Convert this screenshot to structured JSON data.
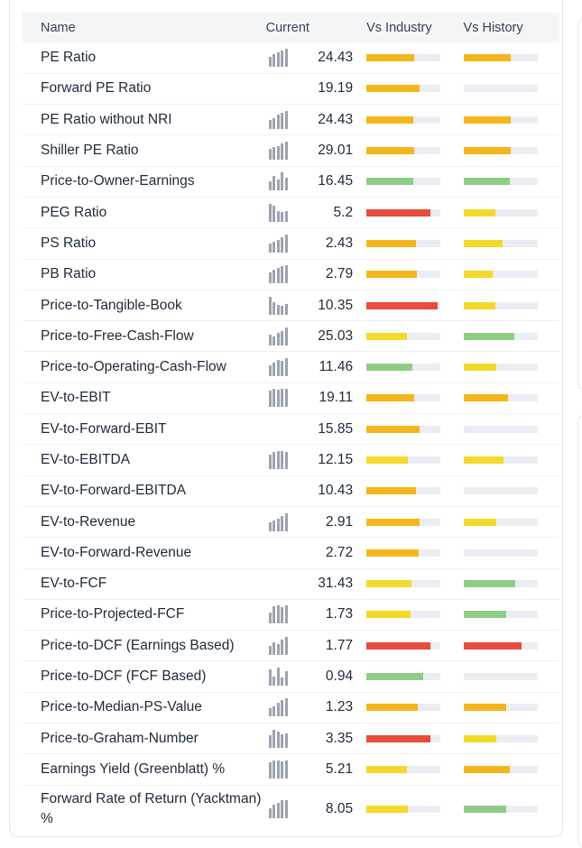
{
  "header": {
    "name": "Name",
    "current": "Current",
    "vs_industry": "Vs Industry",
    "vs_history": "Vs History"
  },
  "colors": {
    "orange": "#f5b61d",
    "yellow": "#f2d92a",
    "green": "#8fcd86",
    "red": "#e84c3d",
    "track": "#eaeef3",
    "spark": "#9ca3af"
  },
  "rows": [
    {
      "name": "PE Ratio",
      "value": "24.43",
      "spark": "bar-chart-icon",
      "spark_heights": [
        0.55,
        0.7,
        0.8,
        0.9,
        1
      ],
      "industry": {
        "level": 0.65,
        "color": "orange"
      },
      "history": {
        "level": 0.64,
        "color": "orange"
      }
    },
    {
      "name": "Forward PE Ratio",
      "value": "19.19",
      "industry": {
        "level": 0.72,
        "color": "orange"
      },
      "history": {
        "level": 0,
        "color": "none"
      }
    },
    {
      "name": "PE Ratio without NRI",
      "value": "24.43",
      "spark": "bar-chart-icon",
      "spark_heights": [
        0.5,
        0.6,
        0.8,
        0.9,
        1
      ],
      "industry": {
        "level": 0.63,
        "color": "orange"
      },
      "history": {
        "level": 0.64,
        "color": "orange"
      }
    },
    {
      "name": "Shiller PE Ratio",
      "value": "29.01",
      "spark": "bar-chart-icon",
      "spark_heights": [
        0.6,
        0.7,
        0.75,
        0.9,
        1
      ],
      "industry": {
        "level": 0.64,
        "color": "orange"
      },
      "history": {
        "level": 0.64,
        "color": "orange"
      }
    },
    {
      "name": "Price-to-Owner-Earnings",
      "value": "16.45",
      "spark": "bar-chart-icon",
      "spark_heights": [
        0.5,
        0.8,
        0.6,
        1,
        0.7
      ],
      "industry": {
        "level": 0.63,
        "color": "green"
      },
      "history": {
        "level": 0.63,
        "color": "green"
      }
    },
    {
      "name": "PEG Ratio",
      "value": "5.2",
      "spark": "bar-chart-icon",
      "spark_heights": [
        1,
        0.9,
        0.6,
        0.55,
        0.6
      ],
      "industry": {
        "level": 0.86,
        "color": "red"
      },
      "history": {
        "level": 0.43,
        "color": "yellow"
      }
    },
    {
      "name": "PS Ratio",
      "value": "2.43",
      "spark": "bar-chart-icon",
      "spark_heights": [
        0.5,
        0.6,
        0.7,
        0.85,
        1
      ],
      "industry": {
        "level": 0.67,
        "color": "orange"
      },
      "history": {
        "level": 0.53,
        "color": "yellow"
      }
    },
    {
      "name": "PB Ratio",
      "value": "2.79",
      "spark": "bar-chart-icon",
      "spark_heights": [
        0.6,
        0.75,
        0.85,
        0.95,
        1
      ],
      "industry": {
        "level": 0.68,
        "color": "orange"
      },
      "history": {
        "level": 0.39,
        "color": "yellow"
      }
    },
    {
      "name": "Price-to-Tangible-Book",
      "value": "10.35",
      "spark": "bar-chart-icon",
      "spark_heights": [
        1,
        0.7,
        0.55,
        0.5,
        0.6
      ],
      "industry": {
        "level": 0.96,
        "color": "red"
      },
      "history": {
        "level": 0.43,
        "color": "yellow"
      }
    },
    {
      "name": "Price-to-Free-Cash-Flow",
      "value": "25.03",
      "spark": "bar-chart-icon",
      "spark_heights": [
        0.6,
        0.5,
        0.7,
        0.8,
        1
      ],
      "industry": {
        "level": 0.55,
        "color": "yellow"
      },
      "history": {
        "level": 0.69,
        "color": "green"
      }
    },
    {
      "name": "Price-to-Operating-Cash-Flow",
      "value": "11.46",
      "spark": "bar-chart-icon",
      "spark_heights": [
        0.6,
        0.75,
        0.9,
        0.85,
        1
      ],
      "industry": {
        "level": 0.62,
        "color": "green"
      },
      "history": {
        "level": 0.44,
        "color": "yellow"
      }
    },
    {
      "name": "EV-to-EBIT",
      "value": "19.11",
      "spark": "bar-chart-icon",
      "spark_heights": [
        0.9,
        1,
        0.95,
        1,
        1
      ],
      "industry": {
        "level": 0.64,
        "color": "orange"
      },
      "history": {
        "level": 0.6,
        "color": "orange"
      }
    },
    {
      "name": "EV-to-Forward-EBIT",
      "value": "15.85",
      "industry": {
        "level": 0.72,
        "color": "orange"
      },
      "history": {
        "level": 0,
        "color": "none"
      }
    },
    {
      "name": "EV-to-EBITDA",
      "value": "12.15",
      "spark": "bar-chart-icon",
      "spark_heights": [
        0.8,
        0.95,
        1,
        1,
        0.95
      ],
      "industry": {
        "level": 0.56,
        "color": "yellow"
      },
      "history": {
        "level": 0.54,
        "color": "yellow"
      }
    },
    {
      "name": "EV-to-Forward-EBITDA",
      "value": "10.43",
      "industry": {
        "level": 0.67,
        "color": "orange"
      },
      "history": {
        "level": 0,
        "color": "none"
      }
    },
    {
      "name": "EV-to-Revenue",
      "value": "2.91",
      "spark": "bar-chart-icon",
      "spark_heights": [
        0.5,
        0.6,
        0.7,
        0.85,
        1
      ],
      "industry": {
        "level": 0.72,
        "color": "orange"
      },
      "history": {
        "level": 0.45,
        "color": "yellow"
      }
    },
    {
      "name": "EV-to-Forward-Revenue",
      "value": "2.72",
      "industry": {
        "level": 0.71,
        "color": "orange"
      },
      "history": {
        "level": 0,
        "color": "none"
      }
    },
    {
      "name": "EV-to-FCF",
      "value": "31.43",
      "industry": {
        "level": 0.61,
        "color": "yellow"
      },
      "history": {
        "level": 0.7,
        "color": "green"
      }
    },
    {
      "name": "Price-to-Projected-FCF",
      "value": "1.73",
      "spark": "bar-chart-icon",
      "spark_heights": [
        0.6,
        0.95,
        1,
        0.9,
        1
      ],
      "industry": {
        "level": 0.6,
        "color": "yellow"
      },
      "history": {
        "level": 0.58,
        "color": "green"
      }
    },
    {
      "name": "Price-to-DCF (Earnings Based)",
      "value": "1.77",
      "spark": "bar-chart-icon",
      "spark_heights": [
        0.5,
        0.7,
        0.6,
        0.85,
        1
      ],
      "industry": {
        "level": 0.87,
        "color": "red"
      },
      "history": {
        "level": 0.79,
        "color": "red"
      }
    },
    {
      "name": "Price-to-DCF (FCF Based)",
      "value": "0.94",
      "spark": "bar-chart-icon",
      "spark_heights": [
        0.9,
        0.5,
        1,
        0.45,
        0.8
      ],
      "industry": {
        "level": 0.77,
        "color": "green"
      },
      "history": {
        "level": 0,
        "color": "none"
      }
    },
    {
      "name": "Price-to-Median-PS-Value",
      "value": "1.23",
      "spark": "bar-chart-icon",
      "spark_heights": [
        0.45,
        0.55,
        0.75,
        0.9,
        1
      ],
      "industry": {
        "level": 0.7,
        "color": "orange"
      },
      "history": {
        "level": 0.58,
        "color": "orange"
      }
    },
    {
      "name": "Price-to-Graham-Number",
      "value": "3.35",
      "spark": "bar-chart-icon",
      "spark_heights": [
        0.7,
        1,
        0.9,
        0.75,
        0.8
      ],
      "industry": {
        "level": 0.87,
        "color": "red"
      },
      "history": {
        "level": 0.45,
        "color": "yellow"
      }
    },
    {
      "name": "Earnings Yield (Greenblatt) %",
      "value": "5.21",
      "spark": "bar-chart-icon",
      "spark_heights": [
        0.9,
        1,
        1,
        0.95,
        1
      ],
      "industry": {
        "level": 0.55,
        "color": "yellow"
      },
      "history": {
        "level": 0.63,
        "color": "orange"
      }
    },
    {
      "name": "Forward Rate of Return (Yacktman) %",
      "value": "8.05",
      "spark": "bar-chart-icon",
      "spark_heights": [
        0.55,
        0.75,
        0.85,
        1,
        1
      ],
      "industry": {
        "level": 0.56,
        "color": "yellow"
      },
      "history": {
        "level": 0.58,
        "color": "green"
      }
    }
  ]
}
